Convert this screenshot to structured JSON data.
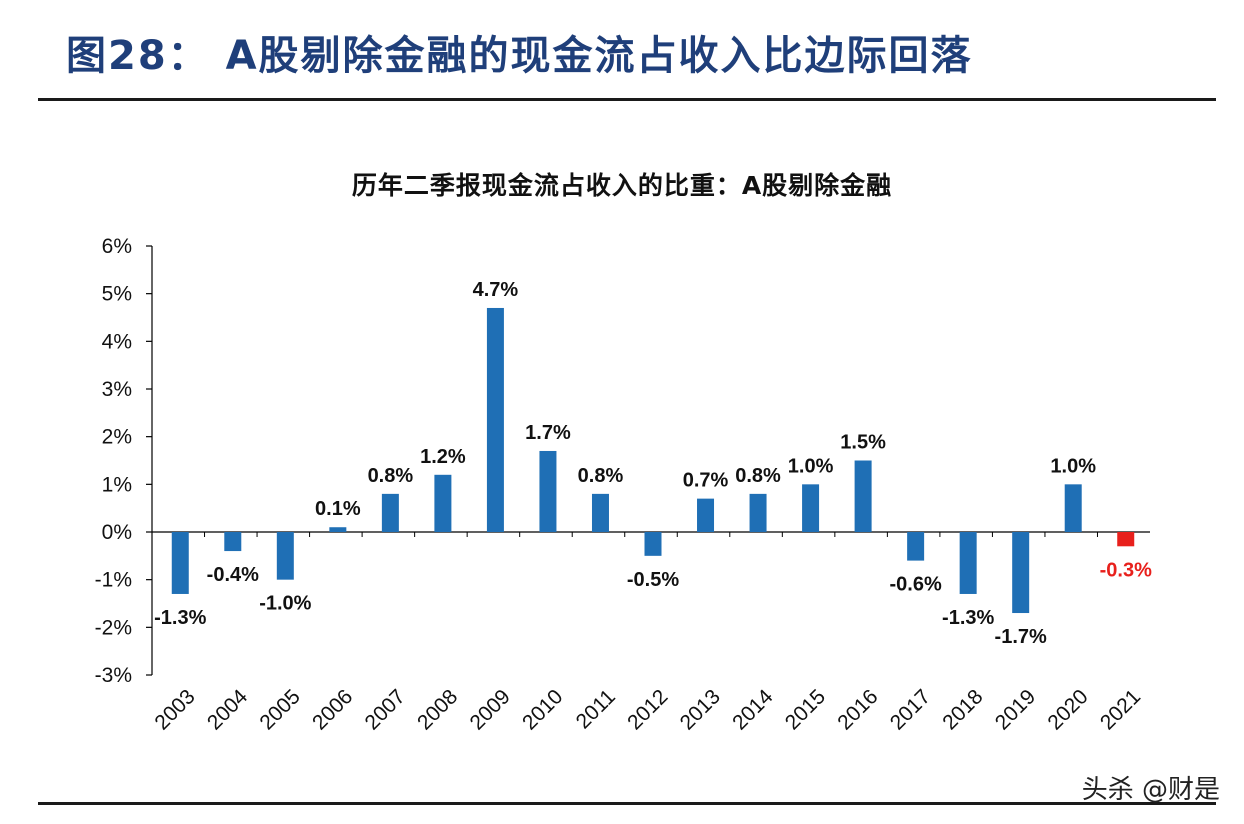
{
  "header": {
    "figure_title": "图28： A股剔除金融的现金流占收入比边际回落"
  },
  "watermark": "头杀 @财是",
  "chart_data": {
    "type": "bar",
    "title": "历年二季报现金流占收入的比重：A股剔除金融",
    "xlabel": "",
    "ylabel": "",
    "ylim": [
      -3,
      6
    ],
    "yticks": [
      6,
      5,
      4,
      3,
      2,
      1,
      0,
      -1,
      -2,
      -3
    ],
    "ytick_labels": [
      "6%",
      "5%",
      "4%",
      "3%",
      "2%",
      "1%",
      "0%",
      "-1%",
      "-2%",
      "-3%"
    ],
    "categories": [
      "2003",
      "2004",
      "2005",
      "2006",
      "2007",
      "2008",
      "2009",
      "2010",
      "2011",
      "2012",
      "2013",
      "2014",
      "2015",
      "2016",
      "2017",
      "2018",
      "2019",
      "2020",
      "2021"
    ],
    "values": [
      -1.3,
      -0.4,
      -1.0,
      0.1,
      0.8,
      1.2,
      4.7,
      1.7,
      0.8,
      -0.5,
      0.7,
      0.8,
      1.0,
      1.5,
      -0.6,
      -1.3,
      -1.7,
      1.0,
      -0.3
    ],
    "data_labels": [
      "-1.3%",
      "-0.4%",
      "-1.0%",
      "0.1%",
      "0.8%",
      "1.2%",
      "4.7%",
      "1.7%",
      "0.8%",
      "-0.5%",
      "0.7%",
      "0.8%",
      "1.0%",
      "1.5%",
      "-0.6%",
      "-1.3%",
      "-1.7%",
      "1.0%",
      "-0.3%"
    ],
    "colors": {
      "bar": "#1f6fb5",
      "highlight_bar": "#e8201c",
      "highlight_label": "#e8201c",
      "label": "#111111"
    },
    "highlight_index": 18,
    "grid": false,
    "legend": "none"
  }
}
